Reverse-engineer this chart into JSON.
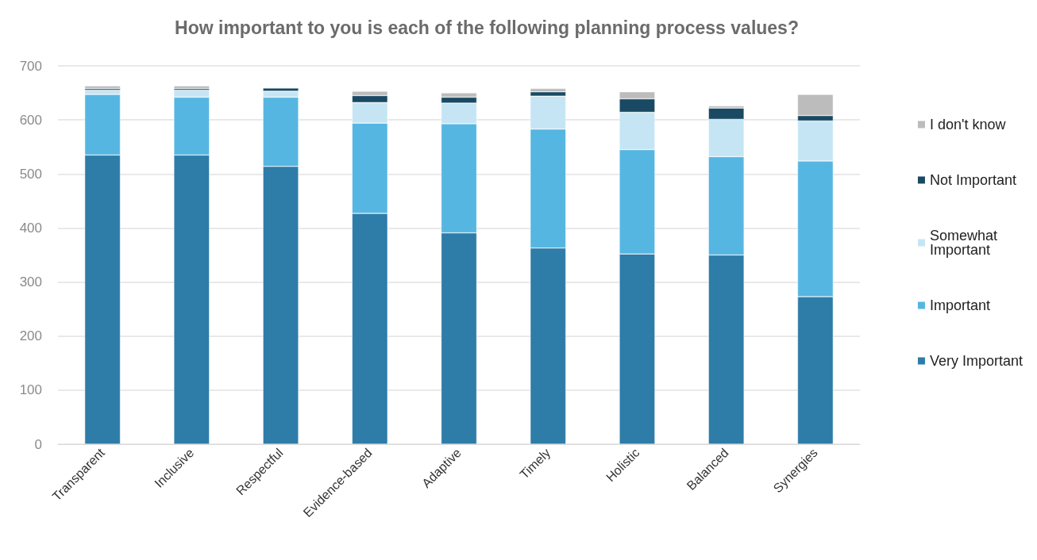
{
  "chart_data": {
    "type": "bar",
    "title": "How important to you is each of the following planning process values?",
    "categories": [
      "Transparent",
      "Inclusive",
      "Respectful",
      "Evidence-based",
      "Adaptive",
      "Timely",
      "Holistic",
      "Balanced",
      "Synergies"
    ],
    "stacked": true,
    "series": [
      {
        "name": "Very Important",
        "color": "#2e7ca8",
        "values": [
          535,
          535,
          514,
          427,
          391,
          363,
          352,
          350,
          273
        ]
      },
      {
        "name": "Important",
        "color": "#56b6e2",
        "values": [
          112,
          107,
          128,
          167,
          202,
          220,
          193,
          182,
          251
        ]
      },
      {
        "name": "Somewhat Important",
        "color": "#c5e5f4",
        "values": [
          8,
          13,
          11,
          38,
          38,
          61,
          69,
          69,
          74
        ]
      },
      {
        "name": "Not Important",
        "color": "#1a4a63",
        "values": [
          3,
          3,
          6,
          13,
          11,
          8,
          25,
          21,
          10
        ]
      },
      {
        "name": "I don't know",
        "color": "#bcbcbc",
        "values": [
          5,
          5,
          null,
          8,
          8,
          6,
          13,
          4,
          39
        ]
      }
    ],
    "ylim": [
      0,
      700
    ],
    "yticks": [
      0,
      100,
      200,
      300,
      400,
      500,
      600,
      700
    ],
    "grid": "y",
    "legend": "right"
  }
}
